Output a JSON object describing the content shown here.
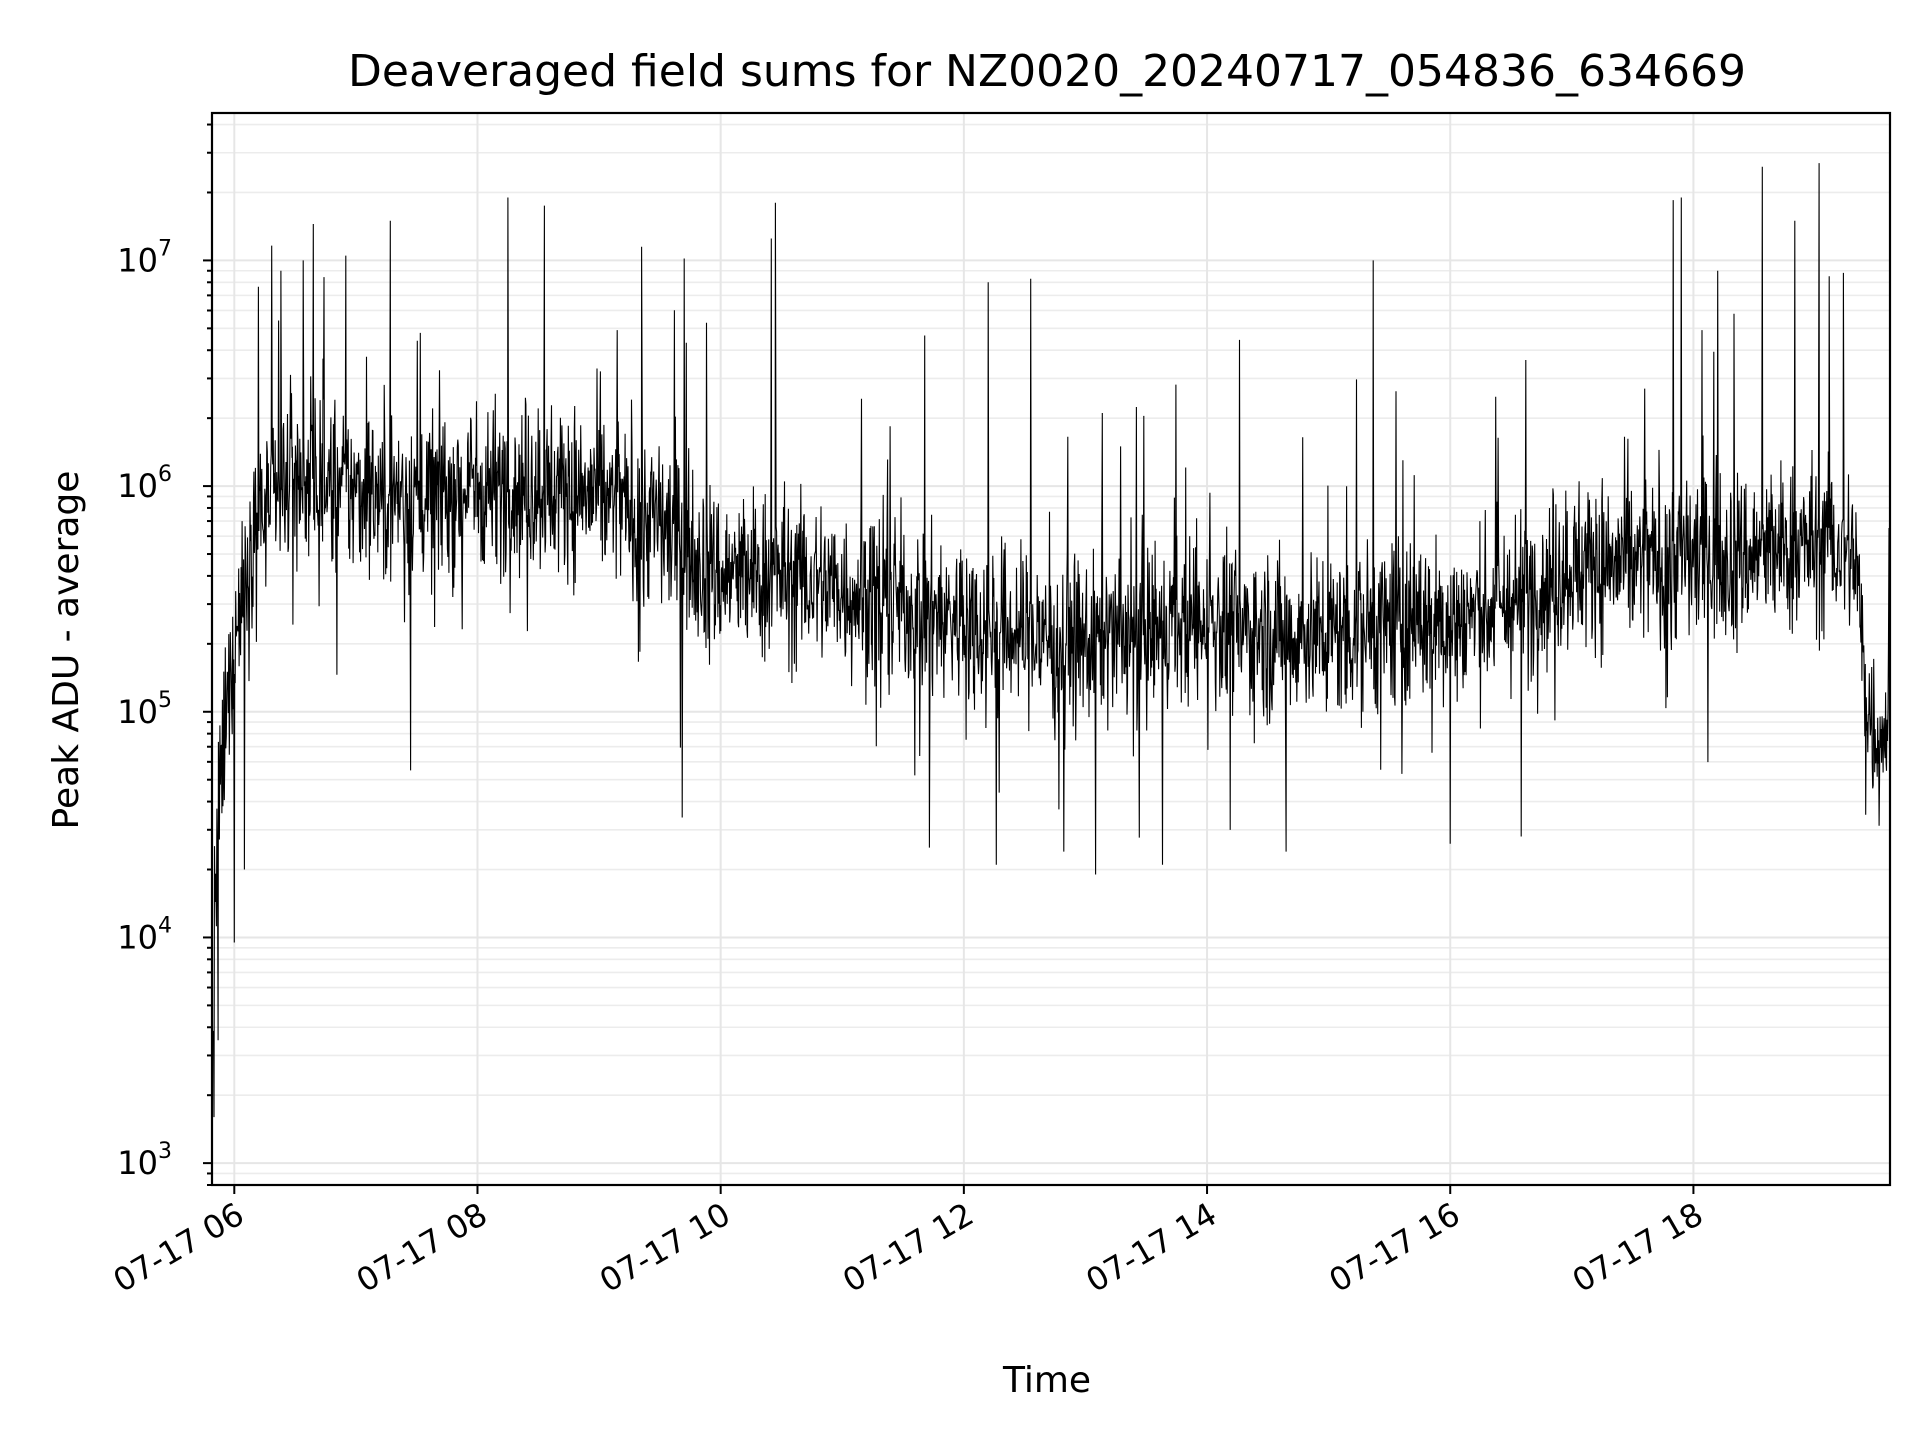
{
  "chart_data": {
    "type": "line",
    "title": "Deaveraged field sums for NZ0020_20240717_054836_634669",
    "xlabel": "Time",
    "ylabel": "Peak ADU - average",
    "yscale": "log",
    "xlim": [
      "2024-07-17 05:49",
      "2024-07-17 19:37"
    ],
    "ylim": [
      800,
      45000000
    ],
    "grid": true,
    "x_ticks": [
      {
        "value": "2024-07-17 06:00",
        "label": "07-17 06"
      },
      {
        "value": "2024-07-17 08:00",
        "label": "07-17 08"
      },
      {
        "value": "2024-07-17 10:00",
        "label": "07-17 10"
      },
      {
        "value": "2024-07-17 12:00",
        "label": "07-17 12"
      },
      {
        "value": "2024-07-17 14:00",
        "label": "07-17 14"
      },
      {
        "value": "2024-07-17 16:00",
        "label": "07-17 16"
      },
      {
        "value": "2024-07-17 18:00",
        "label": "07-17 18"
      }
    ],
    "y_ticks": [
      {
        "value": 1000,
        "base": "10",
        "exp": "3"
      },
      {
        "value": 10000,
        "base": "10",
        "exp": "4"
      },
      {
        "value": 100000,
        "base": "10",
        "exp": "5"
      },
      {
        "value": 1000000,
        "base": "10",
        "exp": "6"
      },
      {
        "value": 10000000,
        "base": "10",
        "exp": "7"
      }
    ],
    "series": [
      {
        "color": "#000000",
        "x": [
          "2024-07-17 05:49",
          "2024-07-17 05:50",
          "2024-07-17 05:52",
          "2024-07-17 05:54",
          "2024-07-17 05:56",
          "2024-07-17 05:58",
          "2024-07-17 06:00",
          "2024-07-17 06:05",
          "2024-07-17 06:10",
          "2024-07-17 06:20",
          "2024-07-17 06:30",
          "2024-07-17 06:45",
          "2024-07-17 07:00",
          "2024-07-17 07:30",
          "2024-07-17 08:00",
          "2024-07-17 08:30",
          "2024-07-17 09:00",
          "2024-07-17 09:30",
          "2024-07-17 10:00",
          "2024-07-17 10:30",
          "2024-07-17 11:00",
          "2024-07-17 11:30",
          "2024-07-17 12:00",
          "2024-07-17 12:30",
          "2024-07-17 13:00",
          "2024-07-17 13:30",
          "2024-07-17 14:00",
          "2024-07-17 14:30",
          "2024-07-17 15:00",
          "2024-07-17 15:30",
          "2024-07-17 16:00",
          "2024-07-17 16:30",
          "2024-07-17 17:00",
          "2024-07-17 17:30",
          "2024-07-17 18:00",
          "2024-07-17 18:30",
          "2024-07-17 19:00",
          "2024-07-17 19:20",
          "2024-07-17 19:25",
          "2024-07-17 19:30",
          "2024-07-17 19:37"
        ],
        "y": [
          2000,
          10000,
          30000,
          60000,
          80000,
          150000,
          200000,
          400000,
          700000,
          900000,
          1100000,
          1000000,
          950000,
          900000,
          1000000,
          1000000,
          900000,
          700000,
          400000,
          400000,
          350000,
          300000,
          250000,
          220000,
          200000,
          220000,
          250000,
          220000,
          220000,
          250000,
          250000,
          300000,
          450000,
          450000,
          500000,
          500000,
          550000,
          500000,
          120000,
          80000,
          90000
        ],
        "spikes": [
          {
            "x": "2024-07-17 06:23",
            "y": 9000000
          },
          {
            "x": "2024-07-17 06:34",
            "y": 10000000
          },
          {
            "x": "2024-07-17 06:39",
            "y": 14500000
          },
          {
            "x": "2024-07-17 06:55",
            "y": 10500000
          },
          {
            "x": "2024-07-17 07:17",
            "y": 15000000
          },
          {
            "x": "2024-07-17 08:15",
            "y": 19000000
          },
          {
            "x": "2024-07-17 08:33",
            "y": 17500000
          },
          {
            "x": "2024-07-17 09:21",
            "y": 11500000
          },
          {
            "x": "2024-07-17 09:42",
            "y": 10200000
          },
          {
            "x": "2024-07-17 10:25",
            "y": 12500000
          },
          {
            "x": "2024-07-17 10:27",
            "y": 18000000
          },
          {
            "x": "2024-07-17 12:12",
            "y": 8000000
          },
          {
            "x": "2024-07-17 12:33",
            "y": 8300000
          },
          {
            "x": "2024-07-17 15:22",
            "y": 10000000
          },
          {
            "x": "2024-07-17 17:50",
            "y": 18500000
          },
          {
            "x": "2024-07-17 17:54",
            "y": 19000000
          },
          {
            "x": "2024-07-17 18:12",
            "y": 9000000
          },
          {
            "x": "2024-07-17 18:34",
            "y": 26000000
          },
          {
            "x": "2024-07-17 18:50",
            "y": 15000000
          },
          {
            "x": "2024-07-17 19:02",
            "y": 27000000
          },
          {
            "x": "2024-07-17 19:07",
            "y": 8500000
          },
          {
            "x": "2024-07-17 19:14",
            "y": 8800000
          }
        ],
        "dips": [
          {
            "x": "2024-07-17 05:50",
            "y": 1600
          },
          {
            "x": "2024-07-17 05:52",
            "y": 3500
          },
          {
            "x": "2024-07-17 06:00",
            "y": 9500
          },
          {
            "x": "2024-07-17 06:05",
            "y": 20000
          },
          {
            "x": "2024-07-17 07:27",
            "y": 55000
          },
          {
            "x": "2024-07-17 09:41",
            "y": 34000
          },
          {
            "x": "2024-07-17 11:43",
            "y": 25000
          },
          {
            "x": "2024-07-17 12:16",
            "y": 21000
          },
          {
            "x": "2024-07-17 13:05",
            "y": 19000
          },
          {
            "x": "2024-07-17 13:38",
            "y": 21000
          },
          {
            "x": "2024-07-17 14:39",
            "y": 24000
          },
          {
            "x": "2024-07-17 16:00",
            "y": 26000
          },
          {
            "x": "2024-07-17 16:35",
            "y": 28000
          },
          {
            "x": "2024-07-17 19:25",
            "y": 35000
          }
        ]
      }
    ]
  }
}
